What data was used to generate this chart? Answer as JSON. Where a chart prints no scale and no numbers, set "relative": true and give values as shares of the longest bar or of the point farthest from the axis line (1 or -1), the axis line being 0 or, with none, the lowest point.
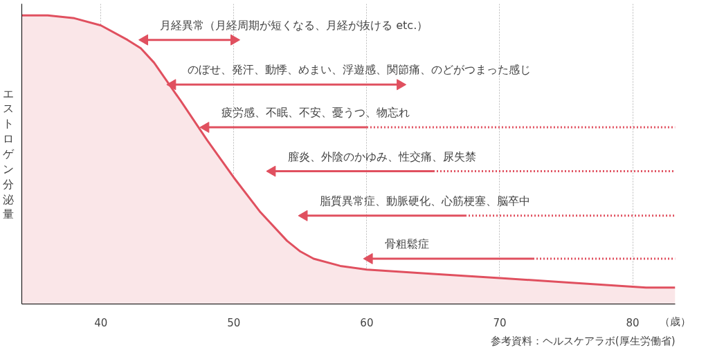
{
  "chart_data": {
    "type": "area",
    "relative": true,
    "xlabel": "（歳）",
    "ylabel": "エストロゲン分泌量",
    "xlim": [
      34.05,
      83.2
    ],
    "xticks": [
      40,
      50,
      60,
      70,
      80
    ],
    "grid": "x",
    "series": [
      {
        "color": "#e0505f",
        "x": [
          34.05,
          36,
          38,
          40,
          42,
          43,
          44,
          46,
          48,
          50,
          52,
          54,
          55,
          56,
          58,
          60,
          65,
          70,
          75,
          80,
          81,
          83.2
        ],
        "values": [
          1.0,
          1.0,
          0.99,
          0.965,
          0.915,
          0.886,
          0.836,
          0.704,
          0.567,
          0.438,
          0.318,
          0.219,
          0.182,
          0.157,
          0.132,
          0.119,
          0.104,
          0.09,
          0.075,
          0.06,
          0.057,
          0.057
        ]
      },
      {
        "type": "line",
        "name": "月経異常（月経周期が短くなる、月経が抜ける etc.）",
        "marker": "triangle",
        "color": "#e0505f",
        "x": [
          43.3,
          50.0
        ],
        "values": [
          0.915,
          0.915
        ]
      },
      {
        "type": "line",
        "name": "のぼせ、発汗、動悸、めまい、浮遊感、関節痛、のどがつまった感じ",
        "marker": "triangle",
        "color": "#e0505f",
        "x": [
          45.4,
          62.5
        ],
        "values": [
          0.76,
          0.76
        ]
      },
      {
        "type": "line",
        "name": "疲労感、不眠、不安、憂うつ、物忘れ",
        "marker": "triangle",
        "color": "#e0505f",
        "x": [
          47.9,
          60.0
        ],
        "values": [
          0.612,
          0.612
        ]
      },
      {
        "type": "line",
        "line_style": "dotted",
        "color": "#e0505f",
        "x": [
          60.0,
          83.2
        ],
        "values": [
          0.612,
          0.612
        ]
      },
      {
        "type": "line",
        "name": "膣炎、外陰のかゆみ、性交痛、尿失禁",
        "marker": "triangle",
        "color": "#e0505f",
        "x": [
          52.9,
          65.0
        ],
        "values": [
          0.46,
          0.46
        ]
      },
      {
        "type": "line",
        "line_style": "dotted",
        "color": "#e0505f",
        "x": [
          65.0,
          83.2
        ],
        "values": [
          0.46,
          0.46
        ]
      },
      {
        "type": "line",
        "name": "脂質異常症、動脈硬化、心筋梗塞、脳卒中",
        "marker": "triangle",
        "color": "#e0505f",
        "x": [
          55.3,
          67.4
        ],
        "values": [
          0.306,
          0.306
        ]
      },
      {
        "type": "line",
        "line_style": "dotted",
        "color": "#e0505f",
        "x": [
          67.4,
          83.2
        ],
        "values": [
          0.306,
          0.306
        ]
      },
      {
        "type": "line",
        "name": "骨粗鬆症",
        "marker": "triangle",
        "color": "#e0505f",
        "x": [
          60.2,
          72.5
        ],
        "values": [
          0.157,
          0.157
        ]
      },
      {
        "type": "line",
        "line_style": "dotted",
        "color": "#e0505f",
        "x": [
          72.5,
          83.2
        ],
        "values": [
          0.157,
          0.157
        ]
      }
    ],
    "annotations": [
      "参考資料：ヘルスケアラボ(厚生労働省)"
    ]
  }
}
